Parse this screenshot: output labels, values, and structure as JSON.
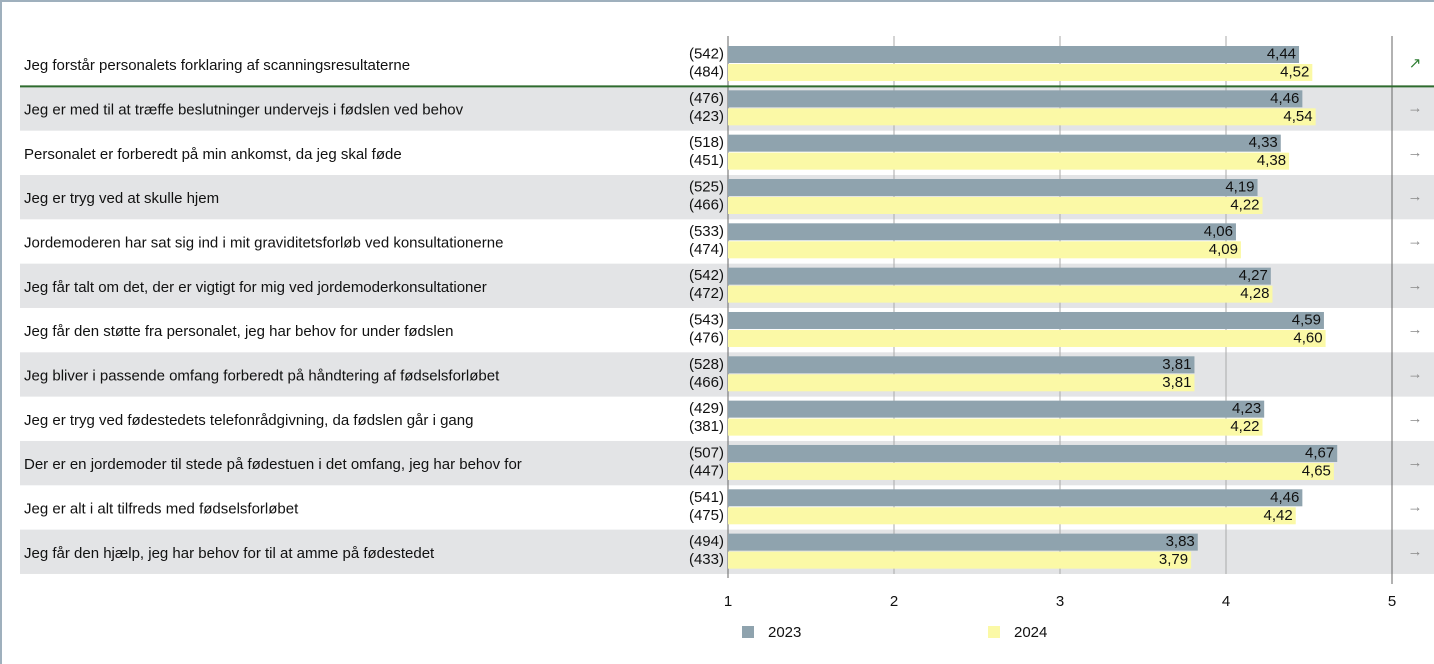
{
  "chart_data": {
    "type": "bar",
    "orientation": "horizontal",
    "categories": [
      "Jeg forstår personalets forklaring af scanningsresultaterne",
      "Jeg er med til at træffe beslutninger undervejs i fødslen ved behov",
      "Personalet er forberedt på min ankomst, da jeg skal føde",
      "Jeg er tryg ved at skulle hjem",
      "Jordemoderen har sat sig ind i mit graviditetsforløb ved konsultationerne",
      "Jeg får talt om det, der er vigtigt for mig ved jordemoderkonsultationer",
      "Jeg får den støtte fra personalet, jeg har behov for under fødslen",
      "Jeg bliver i passende omfang forberedt på håndtering af fødselsforløbet",
      "Jeg er tryg ved fødestedets telefonrådgivning, da fødslen går i gang",
      "Der er en jordemoder til stede på fødestuen i det omfang, jeg har behov for",
      "Jeg er alt i alt tilfreds med fødselsforløbet",
      "Jeg får den hjælp, jeg har behov for til at amme på fødestedet"
    ],
    "series": [
      {
        "name": "2023",
        "color": "#8fa3ae",
        "values": [
          4.44,
          4.46,
          4.33,
          4.19,
          4.06,
          4.27,
          4.59,
          3.81,
          4.23,
          4.67,
          4.46,
          3.83
        ],
        "value_labels": [
          "4,44",
          "4,46",
          "4,33",
          "4,19",
          "4,06",
          "4,27",
          "4,59",
          "3,81",
          "4,23",
          "4,67",
          "4,46",
          "3,83"
        ],
        "counts": [
          542,
          476,
          518,
          525,
          533,
          542,
          543,
          528,
          429,
          507,
          541,
          494
        ],
        "count_labels": [
          "(542)",
          "(476)",
          "(518)",
          "(525)",
          "(533)",
          "(542)",
          "(543)",
          "(528)",
          "(429)",
          "(507)",
          "(541)",
          "(494)"
        ]
      },
      {
        "name": "2024",
        "color": "#fbf9a6",
        "values": [
          4.52,
          4.54,
          4.38,
          4.22,
          4.09,
          4.28,
          4.6,
          3.81,
          4.22,
          4.65,
          4.42,
          3.79
        ],
        "value_labels": [
          "4,52",
          "4,54",
          "4,38",
          "4,22",
          "4,09",
          "4,28",
          "4,60",
          "3,81",
          "4,22",
          "4,65",
          "4,42",
          "3,79"
        ],
        "counts": [
          484,
          423,
          451,
          466,
          474,
          472,
          476,
          466,
          381,
          447,
          475,
          433
        ],
        "count_labels": [
          "(484)",
          "(423)",
          "(451)",
          "(466)",
          "(474)",
          "(472)",
          "(476)",
          "(466)",
          "(381)",
          "(447)",
          "(475)",
          "(433)"
        ]
      }
    ],
    "trends": [
      "↗",
      "→",
      "→",
      "→",
      "→",
      "→",
      "→",
      "→",
      "→",
      "→",
      "→",
      "→"
    ],
    "trend_colors": [
      "#2e7d32",
      "#888888",
      "#888888",
      "#888888",
      "#888888",
      "#888888",
      "#888888",
      "#888888",
      "#888888",
      "#888888",
      "#888888",
      "#888888"
    ],
    "xlim": [
      1,
      5
    ],
    "xticks": [
      1,
      2,
      3,
      4,
      5
    ],
    "grid": true
  }
}
